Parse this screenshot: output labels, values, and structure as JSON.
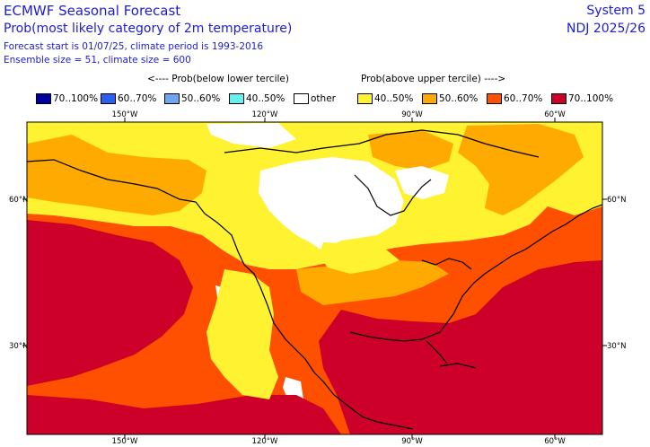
{
  "header": {
    "title": "ECMWF Seasonal Forecast",
    "subtitle": "Prob(most likely category of 2m temperature)",
    "forecast_info": "Forecast start is 01/07/25, climate period is 1993-2016",
    "ensemble_info": "Ensemble size = 51, climate size = 600",
    "system": "System 5",
    "period": "NDJ 2025/26"
  },
  "legend": {
    "below_label": "<---- Prob(below lower tercile)",
    "above_label": "Prob(above upper tercile) ---->",
    "items": [
      {
        "label": "70..100%",
        "color": "#0000a0"
      },
      {
        "label": "60..70%",
        "color": "#2a5ff0"
      },
      {
        "label": "50..60%",
        "color": "#6ea6f0"
      },
      {
        "label": "40..50%",
        "color": "#66f0f0"
      },
      {
        "label": "other",
        "color": "#ffffff"
      },
      {
        "label": "40..50%",
        "color": "#fff230"
      },
      {
        "label": "50..60%",
        "color": "#ffaa00"
      },
      {
        "label": "60..70%",
        "color": "#ff5000"
      },
      {
        "label": "70..100%",
        "color": "#cc0028"
      }
    ]
  },
  "map": {
    "lon_labels": [
      "150°W",
      "120°W",
      "90°W",
      "60°W"
    ],
    "lat_labels": [
      "60°N",
      "30°N"
    ]
  }
}
